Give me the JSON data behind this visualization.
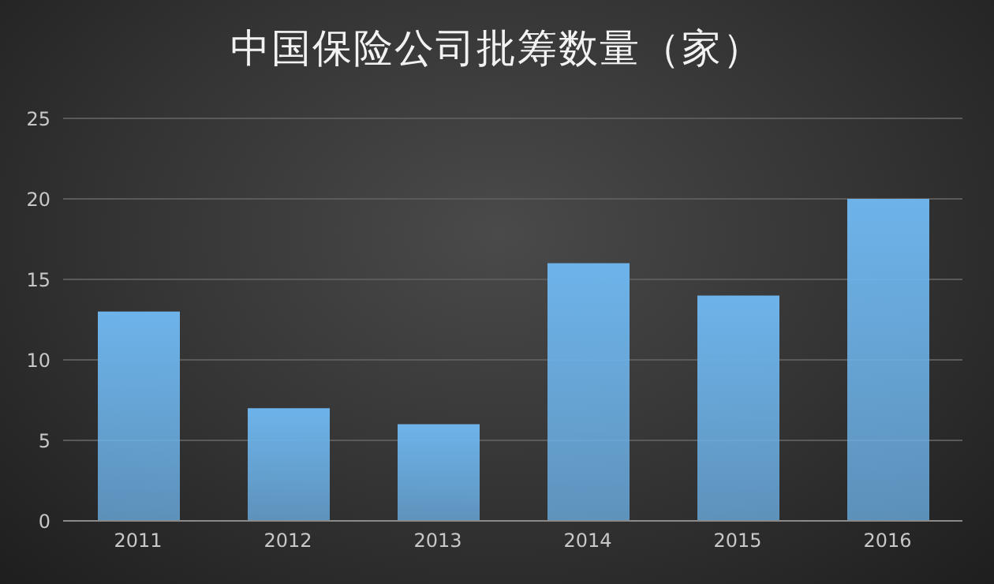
{
  "chart_data": {
    "type": "bar",
    "title": "中国保险公司批筹数量（家）",
    "categories": [
      "2011",
      "2012",
      "2013",
      "2014",
      "2015",
      "2016"
    ],
    "values": [
      13,
      7,
      6,
      16,
      14,
      20
    ],
    "color": "#6db3ea",
    "ylim": [
      0,
      25
    ],
    "yticks": [
      0,
      5,
      10,
      15,
      20,
      25
    ],
    "grid": "y"
  }
}
